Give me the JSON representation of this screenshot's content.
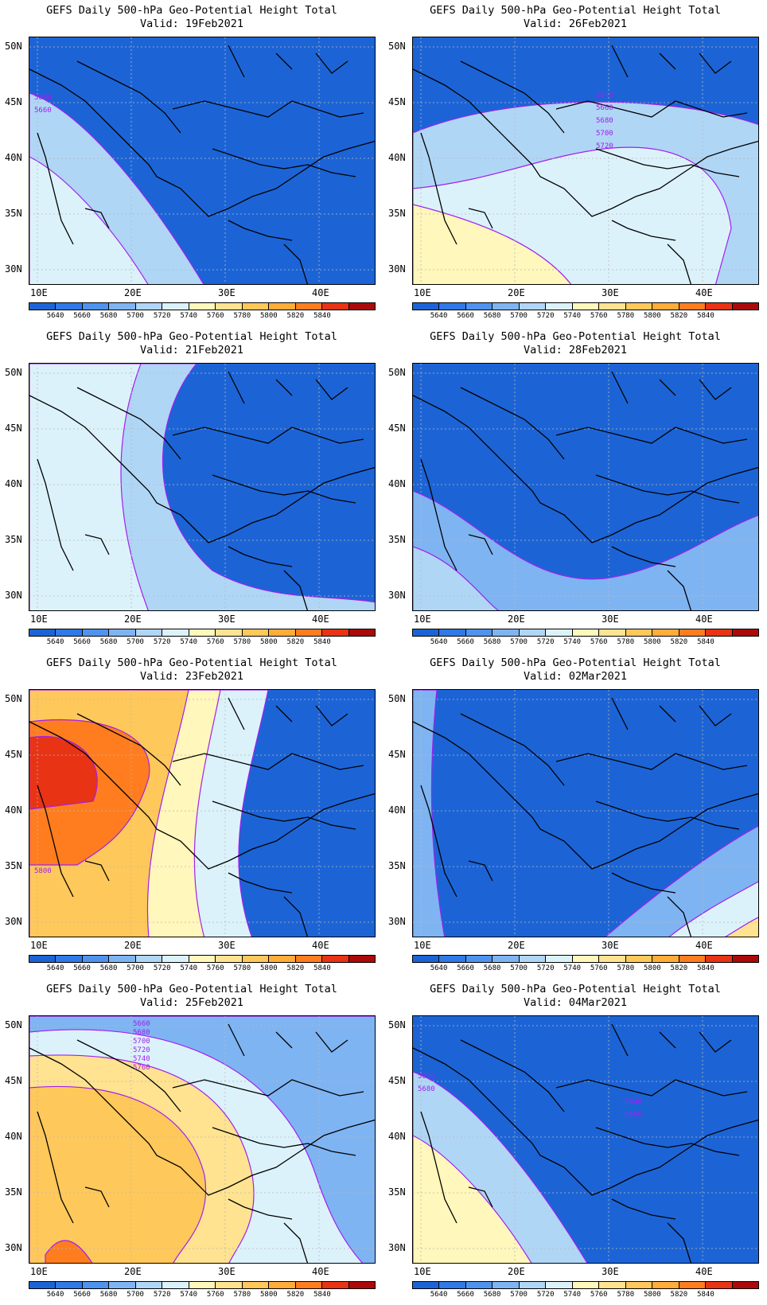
{
  "title": "GEFS Daily 500-hPa Geo-Potential Height Total",
  "valid_prefix": "Valid:",
  "lat_labels": [
    "50N",
    "45N",
    "40N",
    "35N",
    "30N"
  ],
  "lon_labels": [
    "10E",
    "20E",
    "30E",
    "40E"
  ],
  "colorbar": {
    "labels": [
      "5640",
      "5660",
      "5680",
      "5700",
      "5720",
      "5740",
      "5760",
      "5780",
      "5800",
      "5820",
      "5840"
    ],
    "colors": [
      "#1c64d6",
      "#2f79e8",
      "#4f93ef",
      "#7fb4f3",
      "#b0d6f6",
      "#dcf2fb",
      "#fff7bc",
      "#ffe391",
      "#ffc85a",
      "#ffac39",
      "#ff7d1f",
      "#e83315",
      "#aa0a0a"
    ]
  },
  "panels": [
    {
      "valid": "19Feb2021",
      "labels": [
        "5680",
        "5660"
      ],
      "fill": "#1c64d6",
      "blob": "#b0d6f6",
      "blob2": "#dcf2fb",
      "shape": "west"
    },
    {
      "valid": "26Feb2021",
      "labels": [
        "5640",
        "5660",
        "5680",
        "5700",
        "5720"
      ],
      "fill": "#1c64d6",
      "blob": "#b0d6f6",
      "blob2": "#dcf2fb",
      "shape": "south-wide"
    },
    {
      "valid": "21Feb2021",
      "labels": [],
      "fill": "#1c64d6",
      "blob": "#b0d6f6",
      "blob2": "#dcf2fb",
      "shape": "west-wide"
    },
    {
      "valid": "28Feb2021",
      "labels": [],
      "fill": "#1c64d6",
      "blob": "#7fb4f3",
      "blob2": "#b0d6f6",
      "shape": "south"
    },
    {
      "valid": "23Feb2021",
      "labels": [
        "5800"
      ],
      "fill": "#1c64d6",
      "blob": "#ffc85a",
      "blob2": "#ff7d1f",
      "shape": "hot"
    },
    {
      "valid": "02Mar2021",
      "labels": [],
      "fill": "#1c64d6",
      "blob": "#7fb4f3",
      "blob2": "#dcf2fb",
      "shape": "southeast"
    },
    {
      "valid": "25Feb2021",
      "labels": [
        "5660",
        "5680",
        "5700",
        "5720",
        "5740",
        "5760"
      ],
      "fill": "#1c64d6",
      "blob": "#ffe391",
      "blob2": "#ffc85a",
      "shape": "warm"
    },
    {
      "valid": "04Mar2021",
      "labels": [
        "5680",
        "5680",
        "5640",
        "5660"
      ],
      "fill": "#1c64d6",
      "blob": "#b0d6f6",
      "blob2": "#fff7bc",
      "shape": "west"
    }
  ]
}
